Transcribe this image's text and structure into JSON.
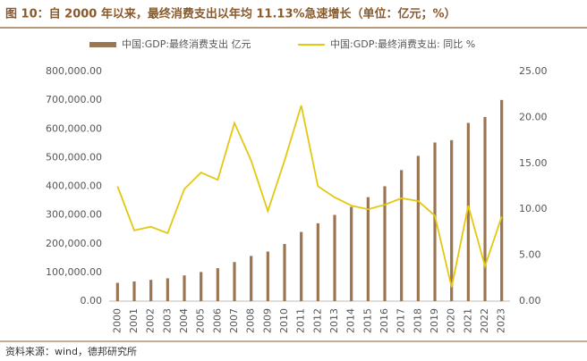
{
  "chart_data": {
    "type": "bar_line",
    "title": "图 10：自 2000 年以来，最终消费支出以年均 11.13%急速增长（单位：亿元；%）",
    "source": "资料来源：wind，德邦研究所",
    "categories": [
      "2000",
      "2001",
      "2002",
      "2003",
      "2004",
      "2005",
      "2006",
      "2007",
      "2008",
      "2009",
      "2010",
      "2011",
      "2012",
      "2013",
      "2014",
      "2015",
      "2016",
      "2017",
      "2018",
      "2019",
      "2020",
      "2021",
      "2022",
      "2023"
    ],
    "series": [
      {
        "name": "中国:GDP:最终消费支出 亿元",
        "color": "#9b7653",
        "type": "bar",
        "values": [
          63749,
          68547,
          74068,
          79513,
          89552,
          101448,
          114729,
          136229,
          157466,
          172728,
          198998,
          241022,
          271113,
          300338,
          328313,
          362267,
          400176,
          456518,
          506135,
          552632,
          560811,
          620922,
          641620,
          701000
        ]
      },
      {
        "name": "中国:GDP:最终消费支出: 同比 %",
        "color": "#e3c80f",
        "type": "line",
        "axis": "y2",
        "values": [
          12.5,
          7.7,
          8.1,
          7.4,
          12.2,
          14.0,
          13.2,
          19.4,
          15.3,
          9.8,
          15.3,
          21.3,
          12.5,
          11.3,
          10.4,
          10.0,
          10.5,
          11.2,
          10.9,
          9.3,
          1.5,
          10.4,
          3.8,
          9.2
        ]
      }
    ],
    "ylim": [
      0,
      800000
    ],
    "yticks": [
      {
        "value": 0,
        "label": "0.00"
      },
      {
        "value": 100000,
        "label": "100,000.00"
      },
      {
        "value": 200000,
        "label": "200,000.00"
      },
      {
        "value": 300000,
        "label": "300,000.00"
      },
      {
        "value": 400000,
        "label": "400,000.00"
      },
      {
        "value": 500000,
        "label": "500,000.00"
      },
      {
        "value": 600000,
        "label": "600,000.00"
      },
      {
        "value": 700000,
        "label": "700,000.00"
      },
      {
        "value": 800000,
        "label": "800,000.00"
      }
    ],
    "y2lim": [
      0,
      25
    ],
    "y2ticks": [
      {
        "value": 0,
        "label": "0.00"
      },
      {
        "value": 5,
        "label": "5.00"
      },
      {
        "value": 10,
        "label": "10.00"
      },
      {
        "value": 15,
        "label": "15.00"
      },
      {
        "value": 20,
        "label": "20.00"
      },
      {
        "value": 25,
        "label": "25.00"
      }
    ]
  }
}
